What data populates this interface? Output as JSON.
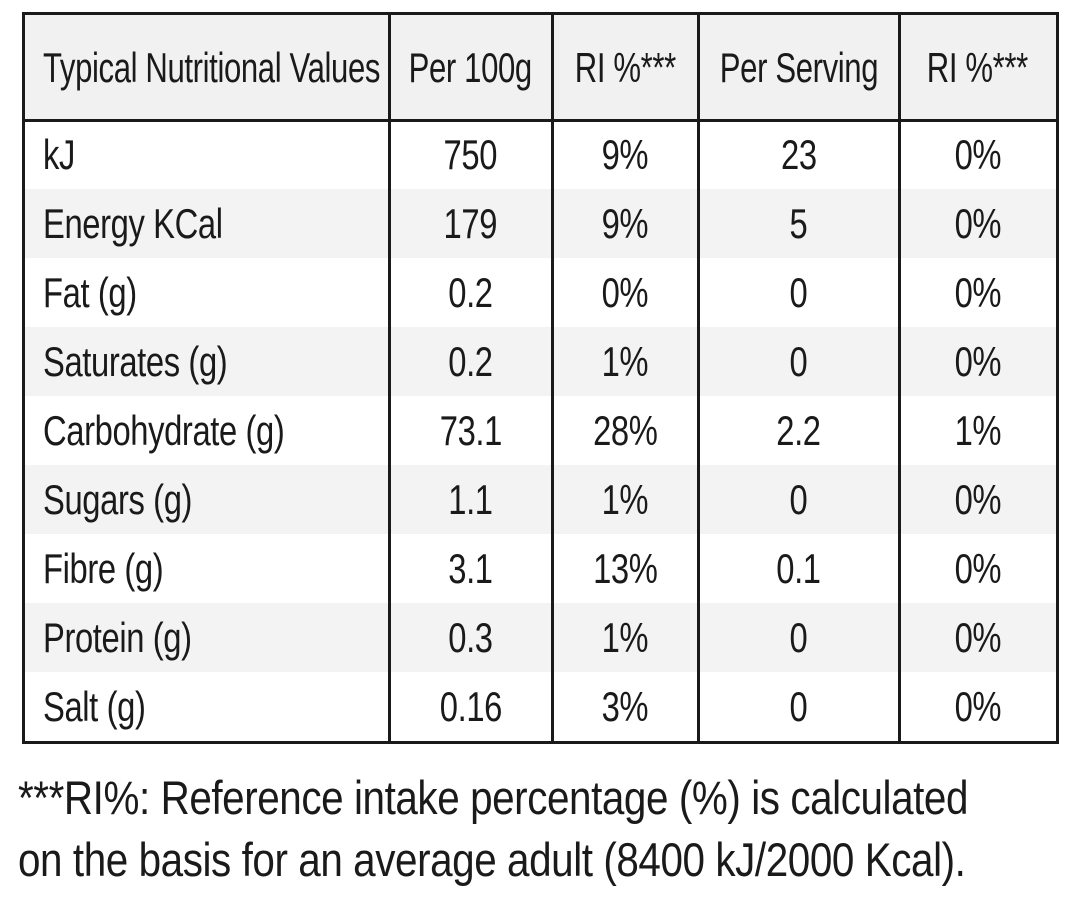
{
  "table": {
    "header": [
      "Typical Nutritional Values",
      "Per 100g",
      "RI %***",
      "Per Serving",
      "RI %***"
    ],
    "rows": [
      [
        "kJ",
        "750",
        "9%",
        "23",
        "0%"
      ],
      [
        "Energy KCal",
        "179",
        "9%",
        "5",
        "0%"
      ],
      [
        "Fat (g)",
        "0.2",
        "0%",
        "0",
        "0%"
      ],
      [
        "Saturates (g)",
        "0.2",
        "1%",
        "0",
        "0%"
      ],
      [
        "Carbohydrate (g)",
        "73.1",
        "28%",
        "2.2",
        "1%"
      ],
      [
        "Sugars (g)",
        "1.1",
        "1%",
        "0",
        "0%"
      ],
      [
        "Fibre (g)",
        "3.1",
        "13%",
        "0.1",
        "0%"
      ],
      [
        "Protein (g)",
        "0.3",
        "1%",
        "0",
        "0%"
      ],
      [
        "Salt (g)",
        "0.16",
        "3%",
        "0",
        "0%"
      ]
    ]
  },
  "footnote": [
    "***RI%: Reference intake percentage (%) is calculated",
    "on the basis for an average adult (8400 kJ/2000 Kcal)."
  ]
}
